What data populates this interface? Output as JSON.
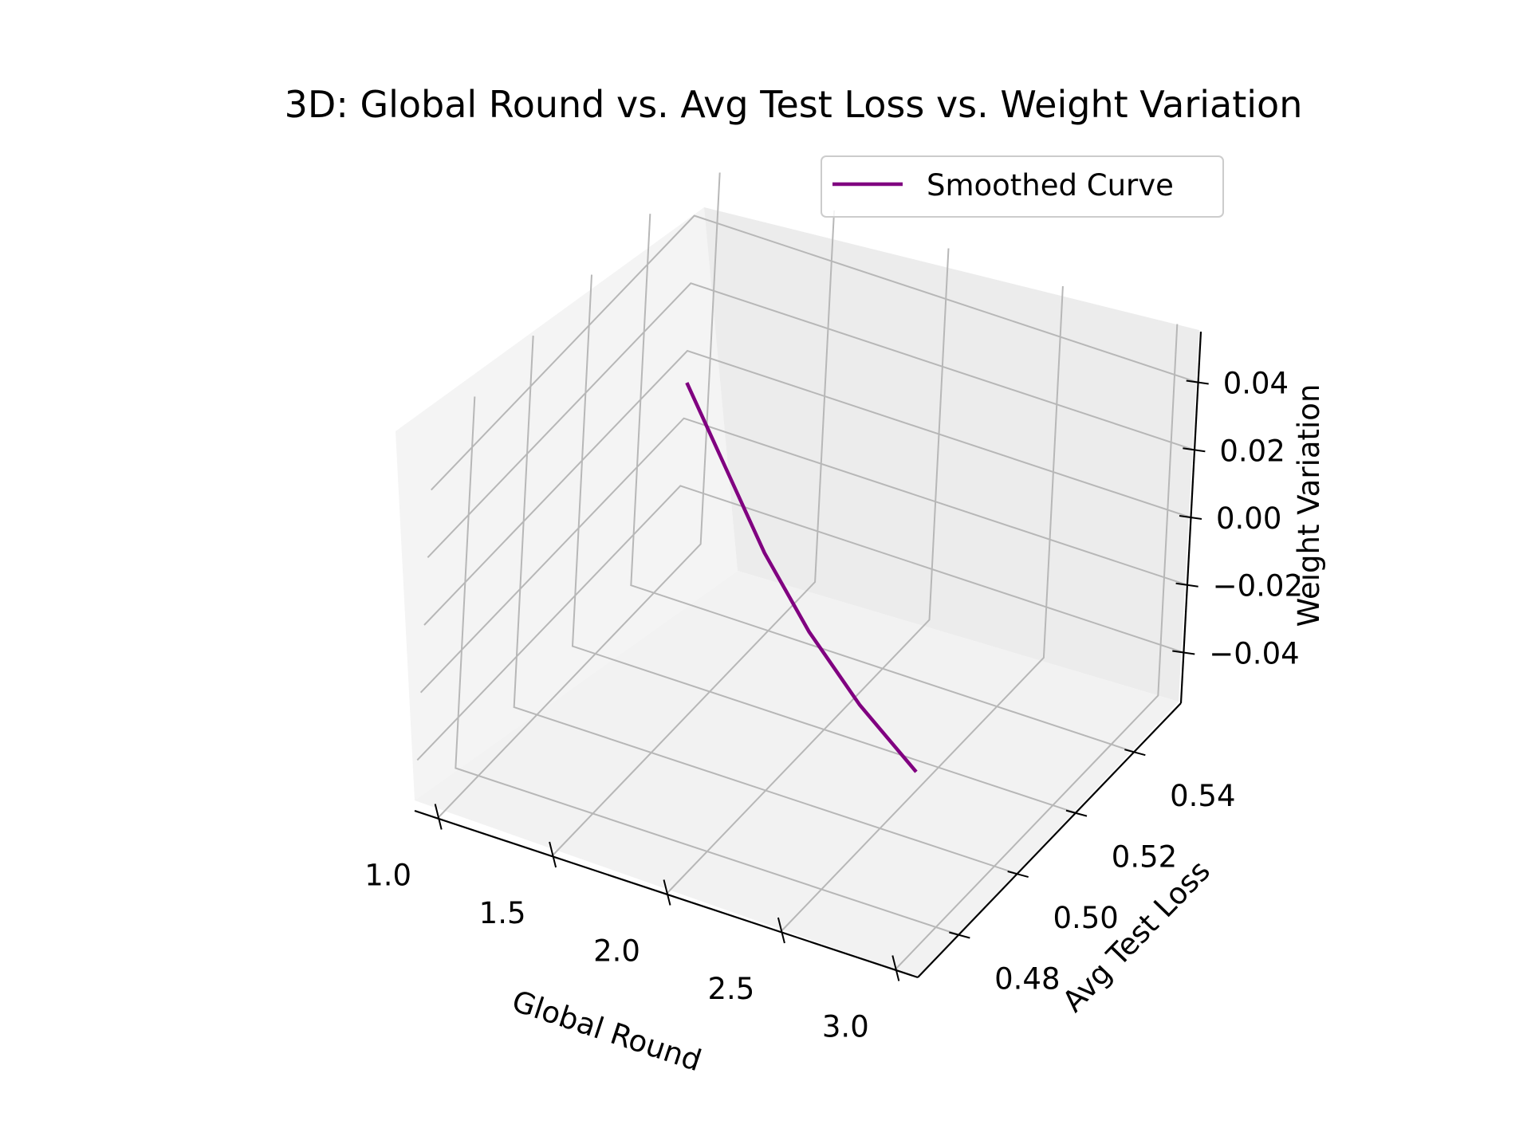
{
  "chart_data": {
    "type": "line",
    "projection": "3d",
    "title": "3D: Global Round vs. Avg Test Loss vs. Weight Variation",
    "xlabel": "Global Round",
    "ylabel": "Avg Test Loss",
    "zlabel": "Weight Variation",
    "xlim": [
      0.9,
      3.1
    ],
    "ylim": [
      0.466,
      0.556
    ],
    "zlim": [
      -0.055,
      0.055
    ],
    "xticks": [
      1.0,
      1.5,
      2.0,
      2.5,
      3.0
    ],
    "xtick_labels": [
      "1.0",
      "1.5",
      "2.0",
      "2.5",
      "3.0"
    ],
    "yticks": [
      0.48,
      0.5,
      0.52,
      0.54
    ],
    "ytick_labels": [
      "0.48",
      "0.50",
      "0.52",
      "0.54"
    ],
    "zticks": [
      -0.04,
      -0.02,
      0.0,
      0.02,
      0.04
    ],
    "ztick_labels": [
      "−0.04",
      "−0.02",
      "0.00",
      "0.02",
      "0.04"
    ],
    "grid": true,
    "legend_location": "upper right",
    "series": [
      {
        "name": "Smoothed Curve",
        "color": "#800080",
        "x": [
          1.0,
          1.2,
          1.4,
          1.6,
          1.8,
          2.0,
          2.2,
          2.4,
          2.6,
          2.8,
          3.0
        ],
        "y": [
          0.548,
          0.539,
          0.53,
          0.521,
          0.512,
          0.504,
          0.496,
          0.489,
          0.482,
          0.476,
          0.47
        ],
        "z": [
          0,
          0,
          0,
          0,
          0,
          0,
          0,
          0,
          0,
          0,
          0
        ]
      }
    ]
  }
}
